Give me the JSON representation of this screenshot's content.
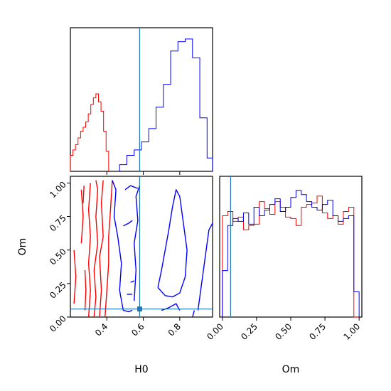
{
  "chart_data": {
    "type": "corner",
    "parameters": [
      "H0",
      "Om"
    ],
    "colors": {
      "red": "#ff0000",
      "blue": "#0000ff",
      "truth": "#1f77b4"
    },
    "truth": {
      "H0": 0.58,
      "Om": 0.06
    },
    "panels": {
      "H0_hist": {
        "xlim": [
          0.2,
          0.98
        ],
        "x_ticks": [
          0.4,
          0.6,
          0.8
        ],
        "series": [
          {
            "color": "red",
            "bins": [
              [
                0.2,
                0.214,
                0.12
              ],
              [
                0.214,
                0.228,
                0.16
              ],
              [
                0.228,
                0.242,
                0.2
              ],
              [
                0.242,
                0.256,
                0.25
              ],
              [
                0.256,
                0.27,
                0.3
              ],
              [
                0.27,
                0.284,
                0.33
              ],
              [
                0.284,
                0.298,
                0.37
              ],
              [
                0.298,
                0.312,
                0.43
              ],
              [
                0.312,
                0.326,
                0.5
              ],
              [
                0.326,
                0.34,
                0.55
              ],
              [
                0.34,
                0.354,
                0.58
              ],
              [
                0.354,
                0.368,
                0.52
              ],
              [
                0.368,
                0.382,
                0.45
              ],
              [
                0.382,
                0.396,
                0.3
              ],
              [
                0.396,
                0.41,
                0.15
              ]
            ]
          },
          {
            "color": "blue",
            "bins": [
              [
                0.47,
                0.51,
                0.05
              ],
              [
                0.51,
                0.55,
                0.12
              ],
              [
                0.55,
                0.59,
                0.16
              ],
              [
                0.59,
                0.63,
                0.22
              ],
              [
                0.63,
                0.67,
                0.32
              ],
              [
                0.67,
                0.71,
                0.48
              ],
              [
                0.71,
                0.75,
                0.65
              ],
              [
                0.75,
                0.79,
                0.9
              ],
              [
                0.79,
                0.83,
                0.97
              ],
              [
                0.83,
                0.87,
                0.99
              ],
              [
                0.87,
                0.91,
                0.85
              ],
              [
                0.91,
                0.95,
                0.4
              ],
              [
                0.95,
                0.98,
                0.1
              ]
            ]
          }
        ]
      },
      "Om_hist": {
        "xlim": [
          -0.02,
          1.02
        ],
        "x_ticks": [
          0.0,
          0.25,
          0.5,
          0.75,
          1.0
        ],
        "x_tick_labels": [
          "0.00",
          "0.25",
          "0.50",
          "0.75",
          "1.00"
        ],
        "series": [
          {
            "color": "red",
            "values": [
              0.72,
              0.75,
              0.68,
              0.71,
              0.62,
              0.65,
              0.66,
              0.82,
              0.77,
              0.73,
              0.82,
              0.78,
              0.71,
              0.7,
              0.65,
              0.78,
              0.8,
              0.81,
              0.86,
              0.74,
              0.7,
              0.72,
              0.66,
              0.75,
              0.78,
              0.0
            ]
          },
          {
            "color": "blue",
            "values": [
              0.33,
              0.65,
              0.7,
              0.68,
              0.74,
              0.66,
              0.78,
              0.72,
              0.76,
              0.8,
              0.84,
              0.75,
              0.78,
              0.85,
              0.9,
              0.87,
              0.82,
              0.78,
              0.76,
              0.8,
              0.83,
              0.72,
              0.68,
              0.7,
              0.72,
              0.18
            ]
          }
        ]
      },
      "joint": {
        "xlim": [
          0.2,
          0.98
        ],
        "ylim": [
          0.0,
          1.05
        ],
        "x_ticks": [
          0.4,
          0.6,
          0.8
        ],
        "y_ticks": [
          0.0,
          0.25,
          0.5,
          0.75,
          1.0
        ],
        "y_tick_labels": [
          "0.00",
          "0.25",
          "0.50",
          "0.75",
          "1.00"
        ],
        "contours": [
          {
            "color": "red",
            "points": [
              [
                0.3,
                0.0
              ],
              [
                0.31,
                0.2
              ],
              [
                0.3,
                0.4
              ],
              [
                0.31,
                0.6
              ],
              [
                0.3,
                0.8
              ],
              [
                0.31,
                1.0
              ]
            ]
          },
          {
            "color": "red",
            "points": [
              [
                0.33,
                0.0
              ],
              [
                0.34,
                0.15
              ],
              [
                0.33,
                0.35
              ],
              [
                0.35,
                0.55
              ],
              [
                0.34,
                0.75
              ],
              [
                0.35,
                0.95
              ],
              [
                0.34,
                1.02
              ]
            ]
          },
          {
            "color": "red",
            "points": [
              [
                0.36,
                0.0
              ],
              [
                0.37,
                0.2
              ],
              [
                0.36,
                0.45
              ],
              [
                0.38,
                0.6
              ],
              [
                0.37,
                0.85
              ],
              [
                0.38,
                1.02
              ]
            ]
          },
          {
            "color": "red",
            "points": [
              [
                0.39,
                0.0
              ],
              [
                0.4,
                0.2
              ],
              [
                0.41,
                0.4
              ],
              [
                0.41,
                0.6
              ],
              [
                0.42,
                0.8
              ],
              [
                0.43,
                1.02
              ]
            ]
          },
          {
            "color": "red",
            "points": [
              [
                0.22,
                0.1
              ],
              [
                0.23,
                0.3
              ],
              [
                0.22,
                0.5
              ]
            ]
          },
          {
            "color": "red",
            "points": [
              [
                0.26,
                0.55
              ],
              [
                0.27,
                0.75
              ],
              [
                0.26,
                0.95
              ]
            ]
          },
          {
            "color": "red",
            "points": [
              [
                0.28,
                0.05
              ],
              [
                0.285,
                0.2
              ],
              [
                0.28,
                0.35
              ]
            ]
          },
          {
            "color": "red",
            "points": [
              [
                0.27,
                0.85
              ],
              [
                0.275,
                0.98
              ]
            ]
          },
          {
            "color": "blue",
            "points": [
              [
                0.43,
                1.02
              ],
              [
                0.45,
                0.95
              ],
              [
                0.44,
                0.75
              ],
              [
                0.46,
                0.6
              ],
              [
                0.48,
                0.4
              ],
              [
                0.47,
                0.2
              ],
              [
                0.49,
                0.05
              ]
            ]
          },
          {
            "color": "blue",
            "points": [
              [
                0.49,
                0.05
              ],
              [
                0.52,
                0.04
              ],
              [
                0.54,
                0.05
              ]
            ]
          },
          {
            "color": "blue",
            "points": [
              [
                0.55,
                0.12
              ],
              [
                0.56,
                0.35
              ],
              [
                0.55,
                0.55
              ],
              [
                0.57,
                0.72
              ],
              [
                0.56,
                0.9
              ],
              [
                0.58,
                0.98
              ]
            ]
          },
          {
            "color": "blue",
            "points": [
              [
                0.5,
                0.95
              ],
              [
                0.53,
                0.98
              ],
              [
                0.57,
                0.96
              ]
            ]
          },
          {
            "color": "blue",
            "points": [
              [
                0.68,
                0.22
              ],
              [
                0.7,
                0.35
              ],
              [
                0.72,
                0.5
              ],
              [
                0.74,
                0.65
              ],
              [
                0.76,
                0.82
              ],
              [
                0.78,
                0.95
              ],
              [
                0.8,
                0.9
              ],
              [
                0.82,
                0.7
              ],
              [
                0.84,
                0.5
              ],
              [
                0.83,
                0.3
              ],
              [
                0.8,
                0.18
              ],
              [
                0.76,
                0.15
              ],
              [
                0.72,
                0.16
              ],
              [
                0.68,
                0.22
              ]
            ]
          },
          {
            "color": "blue",
            "points": [
              [
                0.7,
                0.05
              ],
              [
                0.74,
                0.07
              ],
              [
                0.78,
                0.1
              ],
              [
                0.8,
                0.05
              ]
            ]
          },
          {
            "color": "blue",
            "points": [
              [
                0.9,
                0.05
              ],
              [
                0.92,
                0.25
              ],
              [
                0.94,
                0.45
              ],
              [
                0.96,
                0.65
              ],
              [
                0.98,
                0.7
              ]
            ]
          },
          {
            "color": "blue",
            "points": [
              [
                0.87,
                0.0
              ],
              [
                0.88,
                0.05
              ]
            ]
          },
          {
            "color": "blue",
            "points": [
              [
                0.49,
                0.68
              ],
              [
                0.52,
                0.7
              ],
              [
                0.54,
                0.72
              ]
            ]
          },
          {
            "color": "blue",
            "points": [
              [
                0.51,
                0.17
              ],
              [
                0.54,
                0.17
              ]
            ]
          },
          {
            "color": "blue",
            "points": [
              [
                0.53,
                0.26
              ],
              [
                0.55,
                0.27
              ]
            ]
          }
        ]
      }
    },
    "axis_labels": {
      "x_left": "H0",
      "x_right": "Om",
      "y_joint": "Om"
    }
  }
}
